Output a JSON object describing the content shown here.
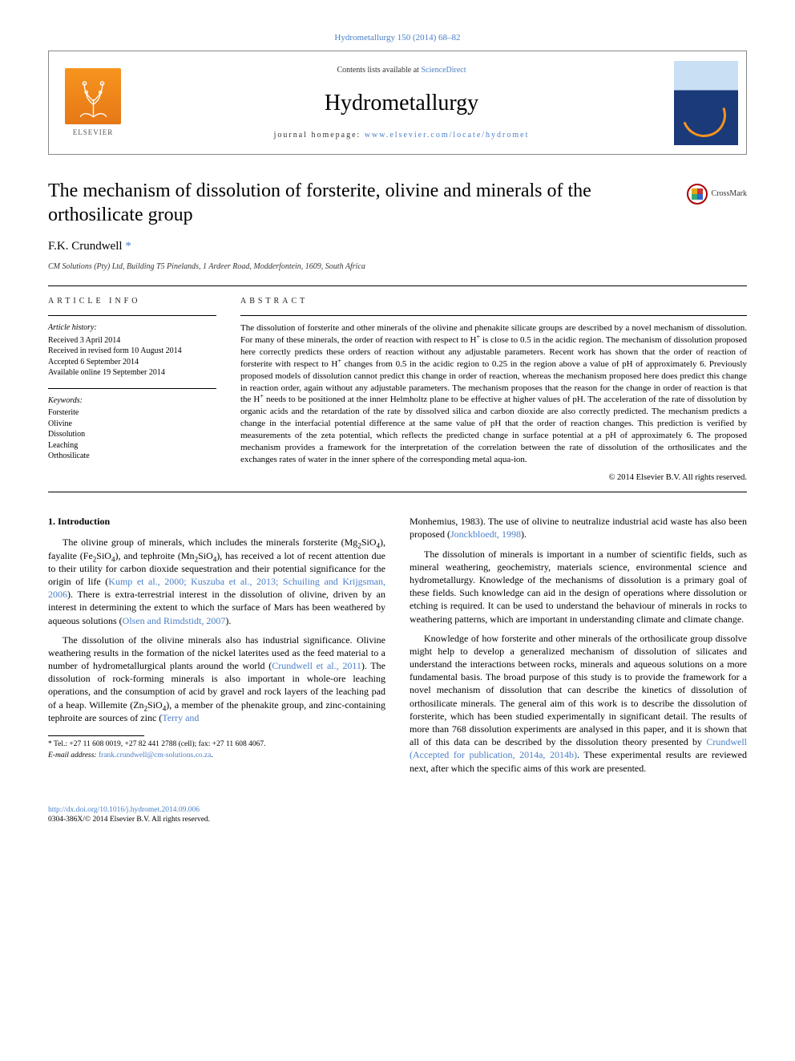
{
  "journal_ref": "Hydrometallurgy 150 (2014) 68–82",
  "header": {
    "contents_prefix": "Contents lists available at ",
    "contents_link": "ScienceDirect",
    "journal_name": "Hydrometallurgy",
    "homepage_prefix": "journal homepage: ",
    "homepage_url": "www.elsevier.com/locate/hydromet",
    "elsevier_label": "ELSEVIER"
  },
  "crossmark_label": "CrossMark",
  "title": "The mechanism of dissolution of forsterite, olivine and minerals of the orthosilicate group",
  "author_name": "F.K. Crundwell",
  "author_mark": "*",
  "affiliation": "CM Solutions (Pty) Ltd, Building T5 Pinelands, 1 Ardeer Road, Modderfontein, 1609, South Africa",
  "article_info_heading": "ARTICLE INFO",
  "history_heading": "Article history:",
  "history": [
    "Received 3 April 2014",
    "Received in revised form 10 August 2014",
    "Accepted 6 September 2014",
    "Available online 19 September 2014"
  ],
  "keywords_heading": "Keywords:",
  "keywords": [
    "Forsterite",
    "Olivine",
    "Dissolution",
    "Leaching",
    "Orthosilicate"
  ],
  "abstract_heading": "ABSTRACT",
  "abstract_html": "The dissolution of forsterite and other minerals of the olivine and phenakite silicate groups are described by a novel mechanism of dissolution. For many of these minerals, the order of reaction with respect to H<sup>+</sup> is close to 0.5 in the acidic region. The mechanism of dissolution proposed here correctly predicts these orders of reaction without any adjustable parameters. Recent work has shown that the order of reaction of forsterite with respect to H<sup>+</sup> changes from 0.5 in the acidic region to 0.25 in the region above a value of pH of approximately 6. Previously proposed models of dissolution cannot predict this change in order of reaction, whereas the mechanism proposed here does predict this change in reaction order, again without any adjustable parameters. The mechanism proposes that the reason for the change in order of reaction is that the H<sup>+</sup> needs to be positioned at the inner Helmholtz plane to be effective at higher values of pH. The acceleration of the rate of dissolution by organic acids and the retardation of the rate by dissolved silica and carbon dioxide are also correctly predicted. The mechanism predicts a change in the interfacial potential difference at the same value of pH that the order of reaction changes. This prediction is verified by measurements of the zeta potential, which reflects the predicted change in surface potential at a pH of approximately 6. The proposed mechanism provides a framework for the interpretation of the correlation between the rate of dissolution of the orthosilicates and the exchanges rates of water in the inner sphere of the corresponding metal aqua-ion.",
  "copyright": "© 2014 Elsevier B.V. All rights reserved.",
  "intro_heading": "1. Introduction",
  "intro_p1_html": "The olivine group of minerals, which includes the minerals forsterite (Mg<sub>2</sub>SiO<sub>4</sub>), fayalite (Fe<sub>2</sub>SiO<sub>4</sub>), and tephroite (Mn<sub>2</sub>SiO<sub>4</sub>), has received a lot of recent attention due to their utility for carbon dioxide sequestration and their potential significance for the origin of life (<span class=\"cite\">Kump et al., 2000; Kuszuba et al., 2013; Schuiling and Krijgsman, 2006</span>). There is extra-terrestrial interest in the dissolution of olivine, driven by an interest in determining the extent to which the surface of Mars has been weathered by aqueous solutions (<span class=\"cite\">Olsen and Rimdstidt, 2007</span>).",
  "intro_p2_html": "The dissolution of the olivine minerals also has industrial significance. Olivine weathering results in the formation of the nickel laterites used as the feed material to a number of hydrometallurgical plants around the world (<span class=\"cite\">Crundwell et al., 2011</span>). The dissolution of rock-forming minerals is also important in whole-ore leaching operations, and the consumption of acid by gravel and rock layers of the leaching pad of a heap. Willemite (Zn<sub>2</sub>SiO<sub>4</sub>), a member of the phenakite group, and zinc-containing tephroite are sources of zinc (<span class=\"cite\">Terry and",
  "intro_p2b_html": "Monhemius, 1983</span>). The use of olivine to neutralize industrial acid waste has also been proposed (<span class=\"cite\">Jonckbloedt, 1998</span>).",
  "intro_p3": "The dissolution of minerals is important in a number of scientific fields, such as mineral weathering, geochemistry, materials science, environmental science and hydrometallurgy. Knowledge of the mechanisms of dissolution is a primary goal of these fields. Such knowledge can aid in the design of operations where dissolution or etching is required. It can be used to understand the behaviour of minerals in rocks to weathering patterns, which are important in understanding climate and climate change.",
  "intro_p4_html": "Knowledge of how forsterite and other minerals of the orthosilicate group dissolve might help to develop a generalized mechanism of dissolution of silicates and understand the interactions between rocks, minerals and aqueous solutions on a more fundamental basis. The broad purpose of this study is to provide the framework for a novel mechanism of dissolution that can describe the kinetics of dissolution of orthosilicate minerals. The general aim of this work is to describe the dissolution of forsterite, which has been studied experimentally in significant detail. The results of more than 768 dissolution experiments are analysed in this paper, and it is shown that all of this data can be described by the dissolution theory presented by <span class=\"cite\">Crundwell (Accepted for publication, 2014a, 2014b)</span>. These experimental results are reviewed next, after which the specific aims of this work are presented.",
  "footnote_contact": "* Tel.: +27 11 608 0019, +27 82 441 2788 (cell); fax: +27 11 608 4067.",
  "footnote_email_label": "E-mail address:",
  "footnote_email": "frank.crundwell@cm-solutions.co.za",
  "footer_doi": "http://dx.doi.org/10.1016/j.hydromet.2014.09.006",
  "footer_issn": "0304-386X/© 2014 Elsevier B.V. All rights reserved.",
  "colors": {
    "link": "#4a7fc8",
    "elsevier_orange": "#f7941e",
    "cover_blue": "#1b3a7a",
    "text": "#000000",
    "background": "#ffffff"
  },
  "typography": {
    "body_pt": 12,
    "title_pt": 24,
    "journal_name_pt": 28,
    "abstract_pt": 11,
    "meta_pt": 10,
    "footnote_pt": 9.5
  }
}
